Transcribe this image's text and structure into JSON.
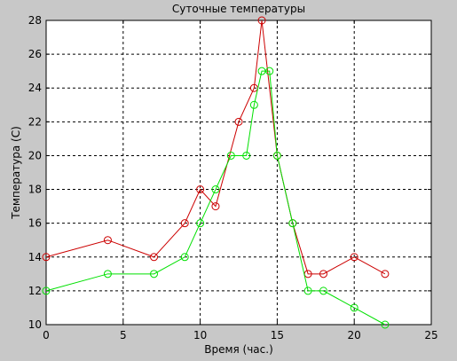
{
  "chart_data": {
    "type": "line",
    "title": "Суточные температуры",
    "xlabel": "Время (час.)",
    "ylabel": "Температура (С)",
    "xlim": [
      0,
      25
    ],
    "ylim": [
      10,
      28
    ],
    "xticks": [
      0,
      5,
      10,
      15,
      20,
      25
    ],
    "yticks": [
      10,
      12,
      14,
      16,
      18,
      20,
      22,
      24,
      26,
      28
    ],
    "grid": true,
    "legend": "none",
    "background": "#c8c8c8",
    "plot_background": "#ffffff",
    "series": [
      {
        "color": "#cc0000",
        "marker": "circle",
        "x": [
          0,
          4,
          7,
          9,
          10,
          11,
          12.5,
          13.5,
          14,
          15,
          16,
          17,
          18,
          20,
          22
        ],
        "y": [
          14,
          15,
          14,
          16,
          18,
          17,
          22,
          24,
          28,
          20,
          16,
          13,
          13,
          14,
          13
        ]
      },
      {
        "color": "#00e000",
        "marker": "circle",
        "x": [
          0,
          4,
          7,
          9,
          10,
          11,
          12,
          13,
          13.5,
          14,
          14.5,
          15,
          16,
          17,
          18,
          20,
          22
        ],
        "y": [
          12,
          13,
          13,
          14,
          16,
          18,
          20,
          20,
          23,
          25,
          25,
          20,
          16,
          12,
          12,
          11,
          10
        ]
      }
    ]
  }
}
